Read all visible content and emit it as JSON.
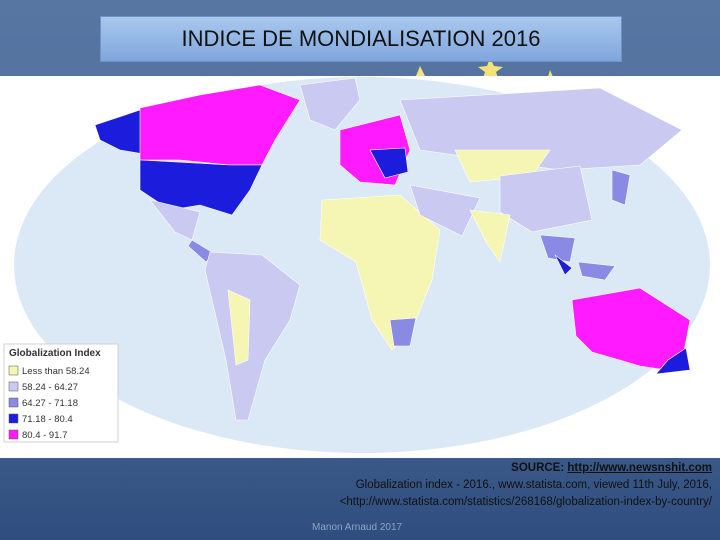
{
  "title": "INDICE DE MONDIALISATION 2016",
  "legend": {
    "title": "Globalization Index",
    "items": [
      {
        "label": "Less than 58.24",
        "color": "#f5f5b4"
      },
      {
        "label": "58.24 - 64.27",
        "color": "#c9c9f2"
      },
      {
        "label": "64.27 - 71.18",
        "color": "#8a8ae4"
      },
      {
        "label": "71.18 - 80.4",
        "color": "#1c1cdc"
      },
      {
        "label": "80.4 - 91.7",
        "color": "#ff1aff"
      }
    ]
  },
  "source": {
    "label": "SOURCE:",
    "link": "http://www.newsnshit.com",
    "lines": [
      "Globalization index -  2016., www.statista.com, viewed 11th July, 2016,",
      "<http://www.statista.com/statistics/268168/globalization-index-by-country/"
    ]
  },
  "author": "Manon Arnaud 2017"
}
